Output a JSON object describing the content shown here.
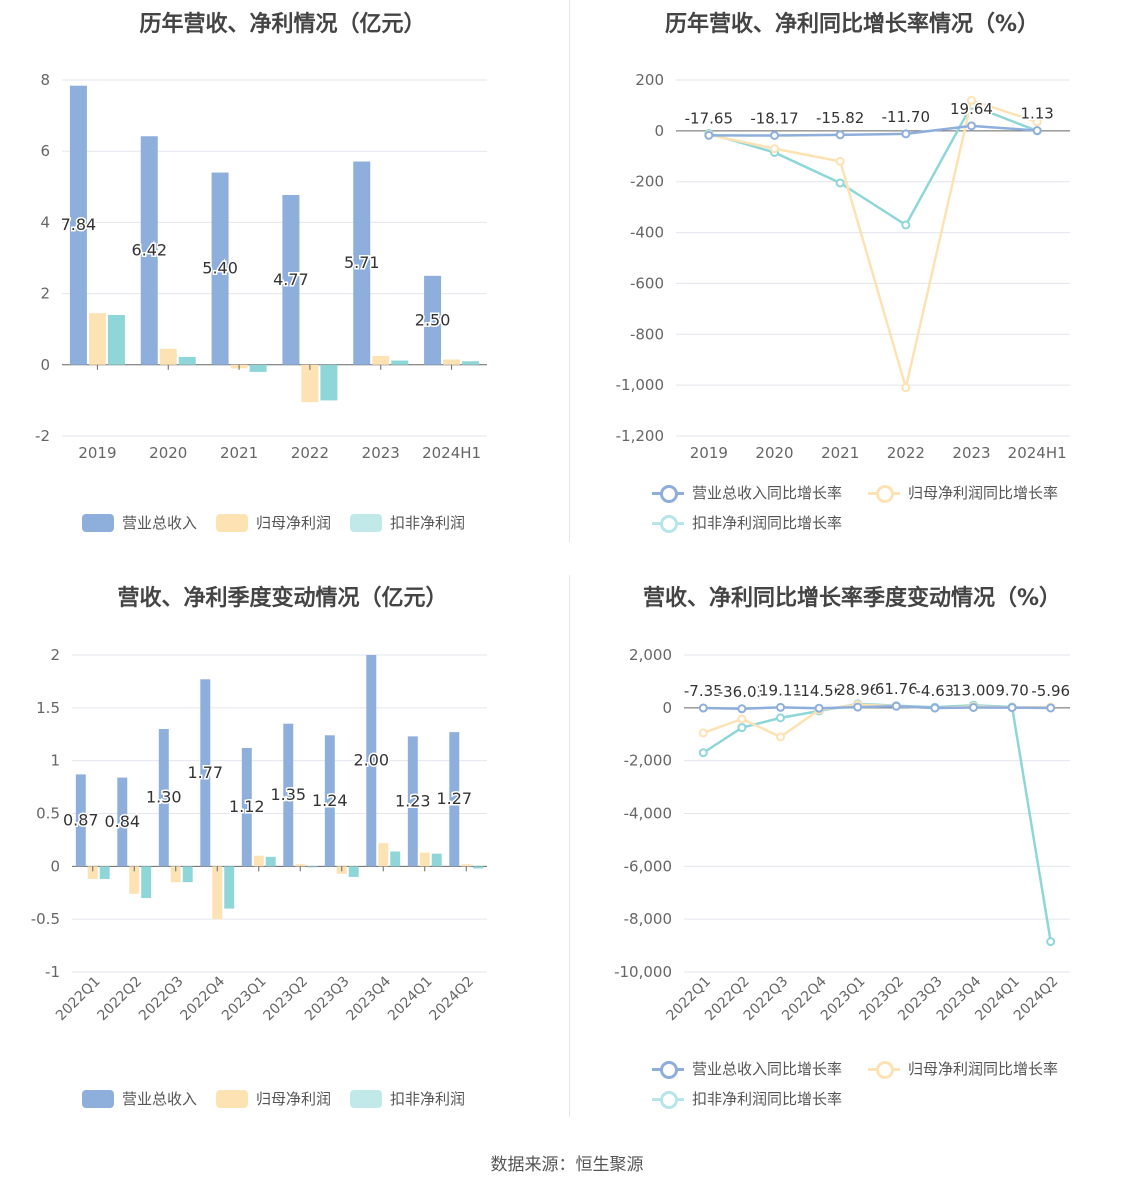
{
  "source": "数据来源：恒生聚源",
  "colors": {
    "revenue": "#8eaedb",
    "net_profit": "#fde3b3",
    "deducted_profit": "#8fd6d9"
  },
  "chart_data": [
    {
      "id": "annual_amount",
      "type": "bar",
      "title": "历年营收、净利情况（亿元）",
      "categories": [
        "2019",
        "2020",
        "2021",
        "2022",
        "2023",
        "2024H1"
      ],
      "series": [
        {
          "name": "营业总收入",
          "values": [
            7.84,
            6.42,
            5.4,
            4.77,
            5.71,
            2.5
          ],
          "labels": [
            "7.84",
            "6.42",
            "5.40",
            "4.77",
            "5.71",
            "2.50"
          ]
        },
        {
          "name": "归母净利润",
          "values": [
            1.45,
            0.45,
            -0.1,
            -1.05,
            0.25,
            0.15
          ]
        },
        {
          "name": "扣非净利润",
          "values": [
            1.4,
            0.22,
            -0.2,
            -1.0,
            0.12,
            0.1
          ]
        }
      ],
      "ylim": [
        -2,
        8
      ],
      "yticks": [
        "-2",
        "0",
        "2",
        "4",
        "6",
        "8"
      ],
      "legend": [
        "营业总收入",
        "归母净利润",
        "扣非净利润"
      ]
    },
    {
      "id": "annual_growth",
      "type": "line",
      "title": "历年营收、净利同比增长率情况（%）",
      "categories": [
        "2019",
        "2020",
        "2021",
        "2022",
        "2023",
        "2024H1"
      ],
      "series": [
        {
          "name": "营业总收入同比增长率",
          "values": [
            -17.65,
            -18.17,
            -15.82,
            -11.7,
            19.64,
            1.13
          ],
          "labels": [
            "-17.65",
            "-18.17",
            "-15.82",
            "-11.70",
            "19.64",
            "1.13"
          ]
        },
        {
          "name": "归母净利润同比增长率",
          "values": [
            -15,
            -70,
            -120,
            -1010,
            120,
            35
          ]
        },
        {
          "name": "扣非净利润同比增长率",
          "values": [
            -10,
            -85,
            -205,
            -370,
            100,
            0
          ]
        }
      ],
      "ylim": [
        -1200,
        200
      ],
      "yticks": [
        "-1,200",
        "-1,000",
        "-800",
        "-600",
        "-400",
        "-200",
        "0",
        "200"
      ],
      "legend": [
        "营业总收入同比增长率",
        "归母净利润同比增长率",
        "扣非净利润同比增长率"
      ]
    },
    {
      "id": "quarterly_amount",
      "type": "bar",
      "title": "营收、净利季度变动情况（亿元）",
      "categories": [
        "2022Q1",
        "2022Q2",
        "2022Q3",
        "2022Q4",
        "2023Q1",
        "2023Q2",
        "2023Q3",
        "2023Q4",
        "2024Q1",
        "2024Q2"
      ],
      "series": [
        {
          "name": "营业总收入",
          "values": [
            0.87,
            0.84,
            1.3,
            1.77,
            1.12,
            1.35,
            1.24,
            2.0,
            1.23,
            1.27
          ],
          "labels": [
            "0.87",
            "0.84",
            "1.30",
            "1.77",
            "1.12",
            "1.35",
            "1.24",
            "2.00",
            "1.23",
            "1.27"
          ]
        },
        {
          "name": "归母净利润",
          "values": [
            -0.12,
            -0.26,
            -0.15,
            -0.5,
            0.1,
            0.02,
            -0.07,
            0.22,
            0.13,
            0.02
          ]
        },
        {
          "name": "扣非净利润",
          "values": [
            -0.12,
            -0.3,
            -0.15,
            -0.4,
            0.09,
            0.0,
            -0.1,
            0.14,
            0.12,
            -0.02
          ]
        }
      ],
      "ylim": [
        -1,
        2
      ],
      "yticks": [
        "-1",
        "-0.5",
        "0",
        "0.5",
        "1",
        "1.5",
        "2"
      ],
      "legend": [
        "营业总收入",
        "归母净利润",
        "扣非净利润"
      ]
    },
    {
      "id": "quarterly_growth",
      "type": "line",
      "title": "营收、净利同比增长率季度变动情况（%）",
      "categories": [
        "2022Q1",
        "2022Q2",
        "2022Q3",
        "2022Q4",
        "2023Q1",
        "2023Q2",
        "2023Q3",
        "2023Q4",
        "2024Q1",
        "2024Q2"
      ],
      "series": [
        {
          "name": "营业总收入同比增长率",
          "values": [
            -7.35,
            -36.03,
            19.11,
            -14.56,
            28.96,
            61.76,
            -4.63,
            13.0,
            9.7,
            -5.96
          ],
          "labels": [
            "-7.35",
            "-36.03",
            "19.11",
            "-14.56",
            "28.96",
            "61.76",
            "-4.63",
            "13.00",
            "9.70",
            "-5.96"
          ]
        },
        {
          "name": "归母净利润同比增长率",
          "values": [
            -950,
            -420,
            -1100,
            -80,
            120,
            60,
            -10,
            50,
            10,
            30
          ]
        },
        {
          "name": "扣非净利润同比增长率",
          "values": [
            -1700,
            -750,
            -380,
            -120,
            150,
            80,
            20,
            100,
            30,
            -8850
          ]
        }
      ],
      "ylim": [
        -10000,
        2000
      ],
      "yticks": [
        "-10,000",
        "-8,000",
        "-6,000",
        "-4,000",
        "-2,000",
        "0",
        "2,000"
      ],
      "legend": [
        "营业总收入同比增长率",
        "归母净利润同比增长率",
        "扣非净利润同比增长率"
      ]
    }
  ]
}
